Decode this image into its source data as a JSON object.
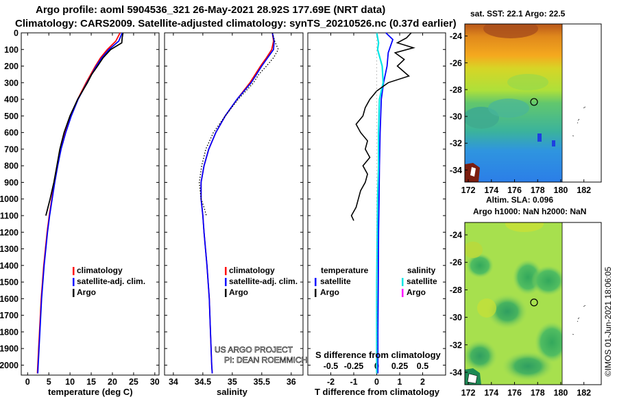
{
  "title_line1": "Argo profile: aoml 5904536_321 26-May-2021 28.92S 177.69E (NRT data)",
  "title_line2": "Climatology: CARS2009. Satellite-adjusted climatology: synTS_20210526.nc (0.37d earlier)",
  "colors": {
    "climatology": "#ff0000",
    "satellite": "#0000ff",
    "argo": "#000000",
    "sal_satellite": "#00e5e5",
    "sal_argo": "#ff00ff"
  },
  "chart_data": [
    {
      "type": "line",
      "name": "temperature-profile",
      "xlabel": "temperature (deg C)",
      "xlim": [
        -1.5,
        31
      ],
      "xticks": [
        "0",
        "5",
        "10",
        "15",
        "20",
        "25",
        "30"
      ],
      "xtick_values": [
        0,
        5,
        10,
        15,
        20,
        25,
        30
      ],
      "ylim": [
        0,
        2060
      ],
      "yticks": [
        "0",
        "100",
        "200",
        "300",
        "400",
        "500",
        "600",
        "700",
        "800",
        "900",
        "1000",
        "1100",
        "1200",
        "1300",
        "1400",
        "1500",
        "1600",
        "1700",
        "1800",
        "1900",
        "2000"
      ],
      "ytick_values": [
        0,
        100,
        200,
        300,
        400,
        500,
        600,
        700,
        800,
        900,
        1000,
        1100,
        1200,
        1300,
        1400,
        1500,
        1600,
        1700,
        1800,
        1900,
        2000
      ],
      "legend": [
        "climatology",
        "satellite-adj. clim.",
        "Argo"
      ],
      "series": [
        {
          "name": "climatology",
          "depth": [
            0,
            50,
            100,
            150,
            200,
            300,
            400,
            500,
            600,
            700,
            800,
            900,
            1000,
            1100,
            1200,
            1400,
            1600,
            1800,
            2000,
            2050
          ],
          "values": [
            21.8,
            20.8,
            18.8,
            17.2,
            16.0,
            13.8,
            11.8,
            10.2,
            8.9,
            7.8,
            7.0,
            6.3,
            5.7,
            5.1,
            4.6,
            3.8,
            3.2,
            2.8,
            2.4,
            2.3
          ]
        },
        {
          "name": "satellite-adj. clim.",
          "depth": [
            0,
            50,
            100,
            150,
            200,
            300,
            400,
            500,
            600,
            700,
            800,
            900,
            1000,
            1100,
            1200,
            1400,
            1600,
            1800,
            2000,
            2050
          ],
          "values": [
            22.3,
            21.5,
            19.2,
            17.5,
            16.2,
            14.0,
            11.9,
            10.3,
            9.0,
            7.9,
            7.1,
            6.4,
            5.8,
            5.2,
            4.7,
            3.9,
            3.3,
            2.9,
            2.5,
            2.4
          ]
        },
        {
          "name": "Argo",
          "depth": [
            0,
            30,
            60,
            100,
            150,
            200,
            250,
            300,
            400,
            500,
            600,
            700,
            800,
            900,
            1000,
            1050,
            1100
          ],
          "values": [
            22.5,
            22.3,
            22.2,
            19.6,
            17.8,
            16.5,
            15.1,
            14.1,
            11.8,
            10.0,
            8.6,
            7.6,
            6.9,
            6.2,
            5.3,
            4.8,
            4.3
          ]
        }
      ]
    },
    {
      "type": "line",
      "name": "salinity-profile",
      "xlabel": "salinity",
      "xlim": [
        33.85,
        36.2
      ],
      "xticks": [
        "34",
        "34.5",
        "35",
        "35.5",
        "36"
      ],
      "xtick_values": [
        34,
        34.5,
        35,
        35.5,
        36
      ],
      "ylim": [
        0,
        2060
      ],
      "legend": [
        "climatology",
        "satellite-adj. clim.",
        "Argo"
      ],
      "series": [
        {
          "name": "climatology",
          "depth": [
            0,
            50,
            100,
            150,
            200,
            300,
            400,
            500,
            600,
            700,
            800,
            900,
            1000,
            1100,
            1200,
            1400,
            1600,
            1800,
            2000,
            2050
          ],
          "values": [
            35.68,
            35.7,
            35.67,
            35.58,
            35.48,
            35.3,
            35.08,
            34.88,
            34.72,
            34.6,
            34.52,
            34.47,
            34.47,
            34.5,
            34.52,
            34.57,
            34.61,
            34.63,
            34.65,
            34.66
          ]
        },
        {
          "name": "satellite-adj. clim.",
          "depth": [
            0,
            50,
            100,
            150,
            200,
            300,
            400,
            500,
            600,
            700,
            800,
            900,
            1000,
            1100,
            1200,
            1400,
            1600,
            1800,
            2000,
            2050
          ],
          "values": [
            35.68,
            35.71,
            35.7,
            35.6,
            35.5,
            35.32,
            35.08,
            34.88,
            34.72,
            34.6,
            34.52,
            34.47,
            34.47,
            34.5,
            34.52,
            34.57,
            34.61,
            34.63,
            34.65,
            34.66
          ]
        },
        {
          "name": "Argo",
          "depth": [
            0,
            50,
            100,
            150,
            200,
            250,
            300,
            400,
            500,
            600,
            700,
            800,
            900,
            1000,
            1050,
            1100
          ],
          "values": [
            35.68,
            35.72,
            35.78,
            35.7,
            35.58,
            35.45,
            35.36,
            35.1,
            34.88,
            34.68,
            34.55,
            34.48,
            34.44,
            34.47,
            34.52,
            34.56
          ]
        }
      ]
    },
    {
      "type": "line",
      "name": "difference-profile",
      "xlabel": "T difference from climatology",
      "xlabel_top": "S difference from climatology",
      "xlim": [
        -3,
        3
      ],
      "xticks": [
        "-2",
        "-1",
        "0",
        "1",
        "2"
      ],
      "xtick_values": [
        -2,
        -1,
        0,
        1,
        2
      ],
      "sticks": [
        "-0.5",
        "-0.25",
        "0",
        "0.25",
        "0.5"
      ],
      "stick_values": [
        -0.5,
        -0.25,
        0,
        0.25,
        0.5
      ],
      "s_scale": 4,
      "ylim": [
        0,
        2060
      ],
      "legend_temperature_title": "temperature",
      "legend_salinity_title": "salinity",
      "legend_temperature": [
        "satellite",
        "Argo"
      ],
      "legend_salinity": [
        "satellite",
        "Argo"
      ],
      "series": [
        {
          "name": "T satellite",
          "depth": [
            0,
            40,
            80,
            120,
            200,
            300,
            400,
            600,
            800,
            1000,
            1200,
            1500,
            1800,
            2050
          ],
          "values": [
            0.4,
            0.7,
            0.6,
            0.5,
            0.45,
            0.3,
            0.2,
            0.15,
            0.12,
            0.1,
            0.08,
            0.07,
            0.05,
            0.05
          ]
        },
        {
          "name": "S satellite",
          "depth": [
            0,
            60,
            100,
            200,
            300,
            400,
            600,
            800,
            1000,
            1500,
            2050
          ],
          "values": [
            0.0,
            0.02,
            0.01,
            0.06,
            0.07,
            0.03,
            0.02,
            0.02,
            0.01,
            0.0,
            0.0
          ]
        },
        {
          "name": "T Argo",
          "depth": [
            0,
            30,
            60,
            90,
            120,
            160,
            200,
            260,
            300,
            350,
            400,
            450,
            500,
            550,
            600,
            650,
            700,
            750,
            800,
            850,
            900,
            950,
            1000,
            1050,
            1100,
            1130
          ],
          "values": [
            1.5,
            1.3,
            0.9,
            1.6,
            0.8,
            1.2,
            0.9,
            1.4,
            0.5,
            0.0,
            -0.3,
            -0.5,
            -0.6,
            -0.9,
            -0.7,
            -0.4,
            -0.5,
            -0.3,
            -0.6,
            -0.4,
            -0.5,
            -0.7,
            -0.8,
            -0.9,
            -1.1,
            -1.0
          ]
        }
      ]
    },
    {
      "type": "heatmap",
      "name": "sst-map",
      "title": "sat. SST: 22.1  Argo: 22.5",
      "subtitle": "Altim. SLA: 0.096",
      "xticks": [
        "172",
        "174",
        "176",
        "178",
        "180",
        "182"
      ],
      "xtick_values": [
        172,
        174,
        176,
        178,
        180,
        182
      ],
      "yticks": [
        "-24",
        "-26",
        "-28",
        "-30",
        "-32",
        "-34"
      ],
      "ytick_values": [
        -24,
        -26,
        -28,
        -30,
        -32,
        -34
      ],
      "xlim": [
        171.7,
        183.5
      ],
      "ylim": [
        -34.9,
        -23.1
      ],
      "marker": {
        "lon": 177.69,
        "lat": -28.92
      }
    },
    {
      "type": "heatmap",
      "name": "sla-map",
      "title": "Argo h1000: NaN h2000: NaN",
      "xticks": [
        "172",
        "174",
        "176",
        "178",
        "180",
        "182"
      ],
      "xtick_values": [
        172,
        174,
        176,
        178,
        180,
        182
      ],
      "yticks": [
        "-24",
        "-26",
        "-28",
        "-30",
        "-32",
        "-34"
      ],
      "ytick_values": [
        -24,
        -26,
        -28,
        -30,
        -32,
        -34
      ],
      "xlim": [
        171.7,
        183.5
      ],
      "ylim": [
        -34.9,
        -23.1
      ],
      "marker": {
        "lon": 177.69,
        "lat": -28.92
      }
    }
  ],
  "credit_line1": "US ARGO PROJECT",
  "credit_line2": "PI: DEAN ROEMMICH",
  "imos_stamp": "©IMOS 01-Jun-2021 18:06:05"
}
